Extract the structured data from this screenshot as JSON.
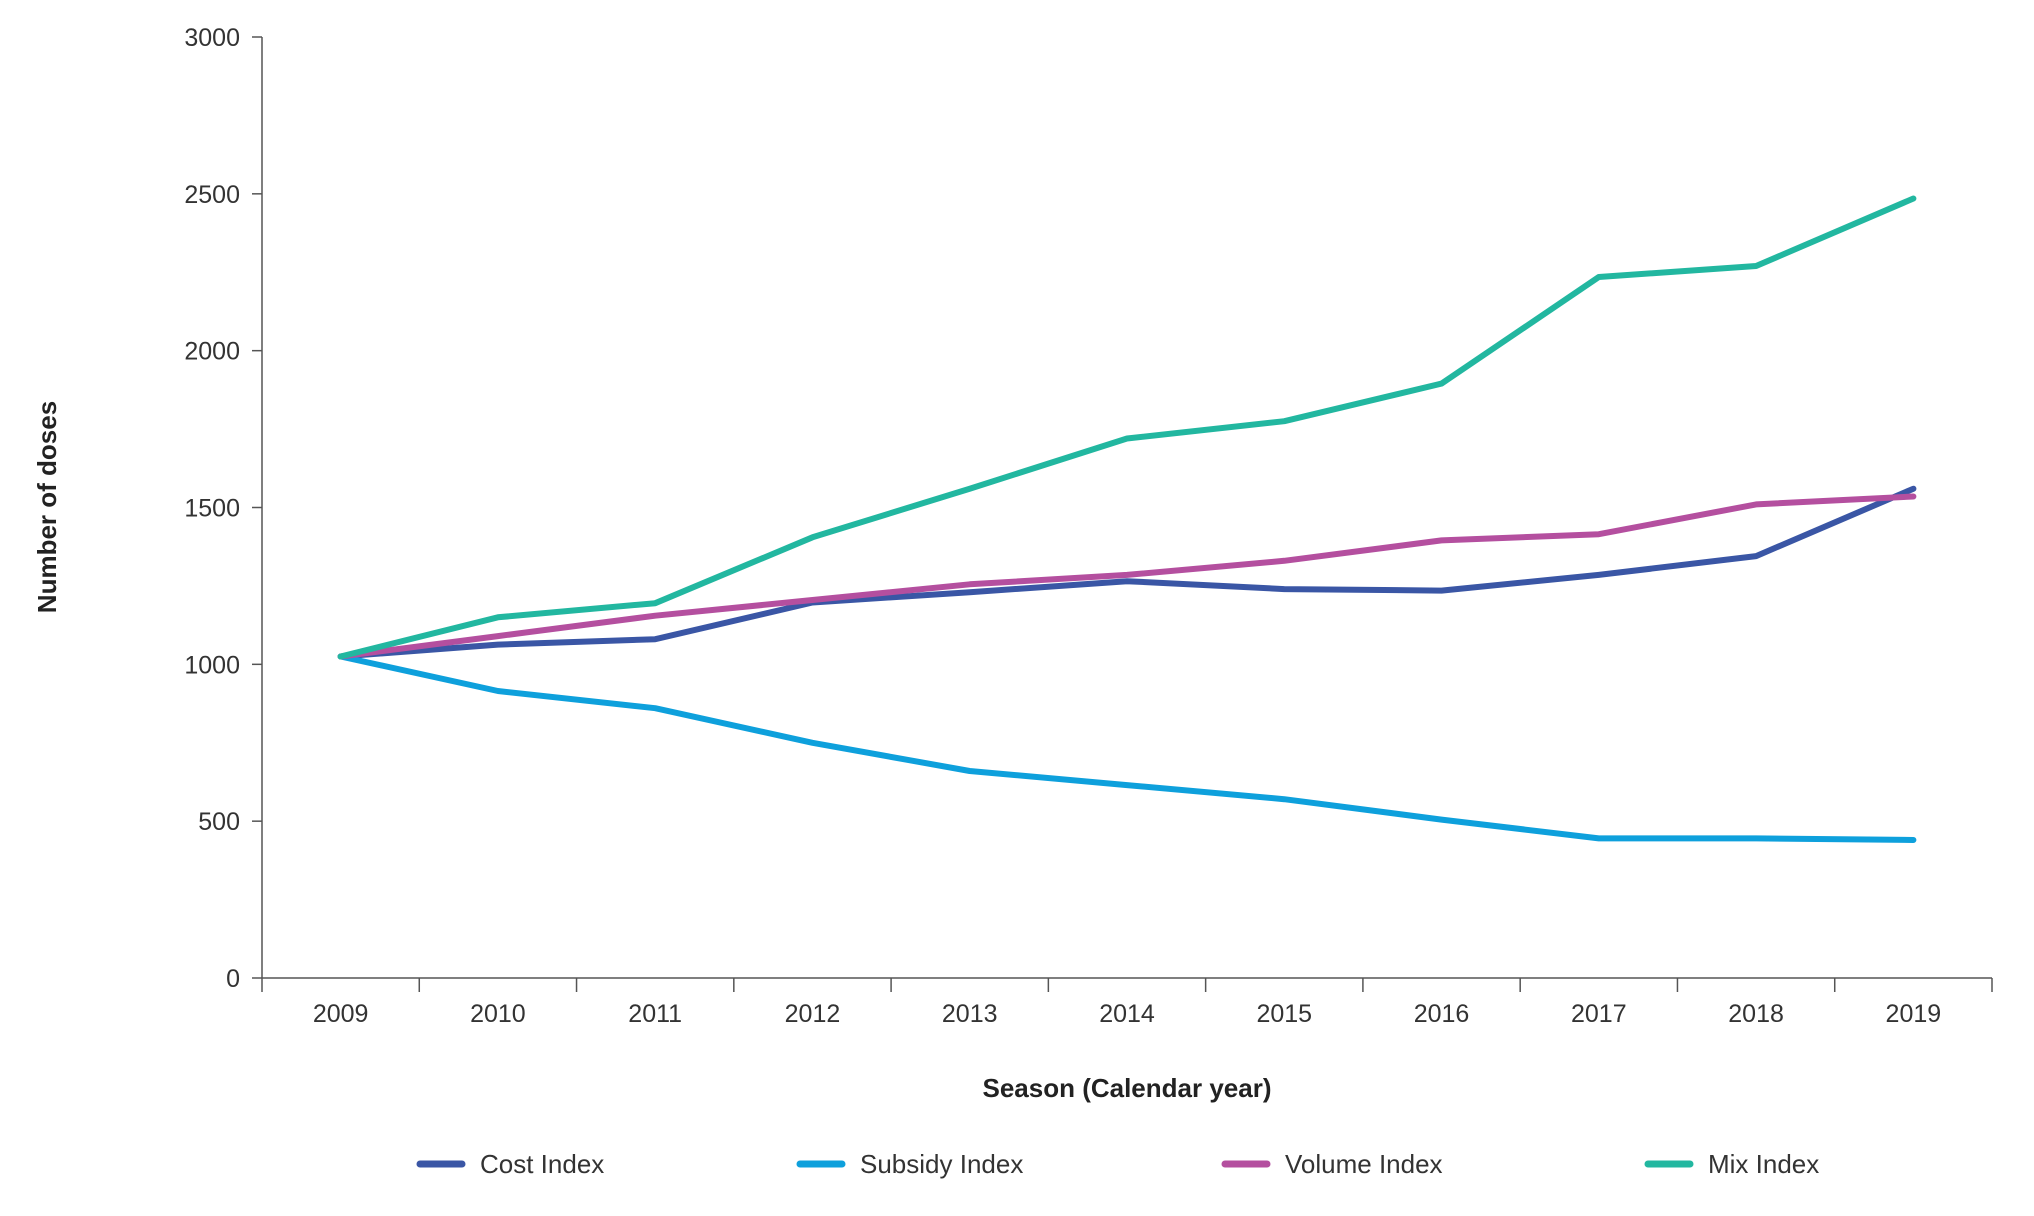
{
  "chart_data": {
    "type": "line",
    "title": "",
    "xlabel": "Season (Calendar year)",
    "ylabel": "Number of doses",
    "x": [
      "2009",
      "2010",
      "2011",
      "2012",
      "2013",
      "2014",
      "2015",
      "2016",
      "2017",
      "2018",
      "2019"
    ],
    "yticks": [
      "0",
      "500",
      "1000",
      "1500",
      "2000",
      "2500",
      "3000"
    ],
    "ylim": [
      0,
      3000
    ],
    "grid": false,
    "legend_position": "bottom",
    "series": [
      {
        "name": "Cost Index",
        "color": "#3a56a5",
        "values": [
          1025,
          1063,
          1080,
          1197,
          1230,
          1265,
          1240,
          1235,
          1285,
          1345,
          1560
        ]
      },
      {
        "name": "Subsidy Index",
        "color": "#0ea0dc",
        "values": [
          1025,
          915,
          860,
          750,
          660,
          615,
          570,
          505,
          445,
          445,
          440
        ]
      },
      {
        "name": "Volume Index",
        "color": "#b44f9f",
        "values": [
          1025,
          1090,
          1155,
          1205,
          1255,
          1285,
          1330,
          1395,
          1415,
          1510,
          1535
        ]
      },
      {
        "name": "Mix Index",
        "color": "#22b7a0",
        "values": [
          1025,
          1150,
          1195,
          1405,
          1560,
          1720,
          1775,
          1895,
          2235,
          2270,
          2485
        ]
      }
    ]
  }
}
